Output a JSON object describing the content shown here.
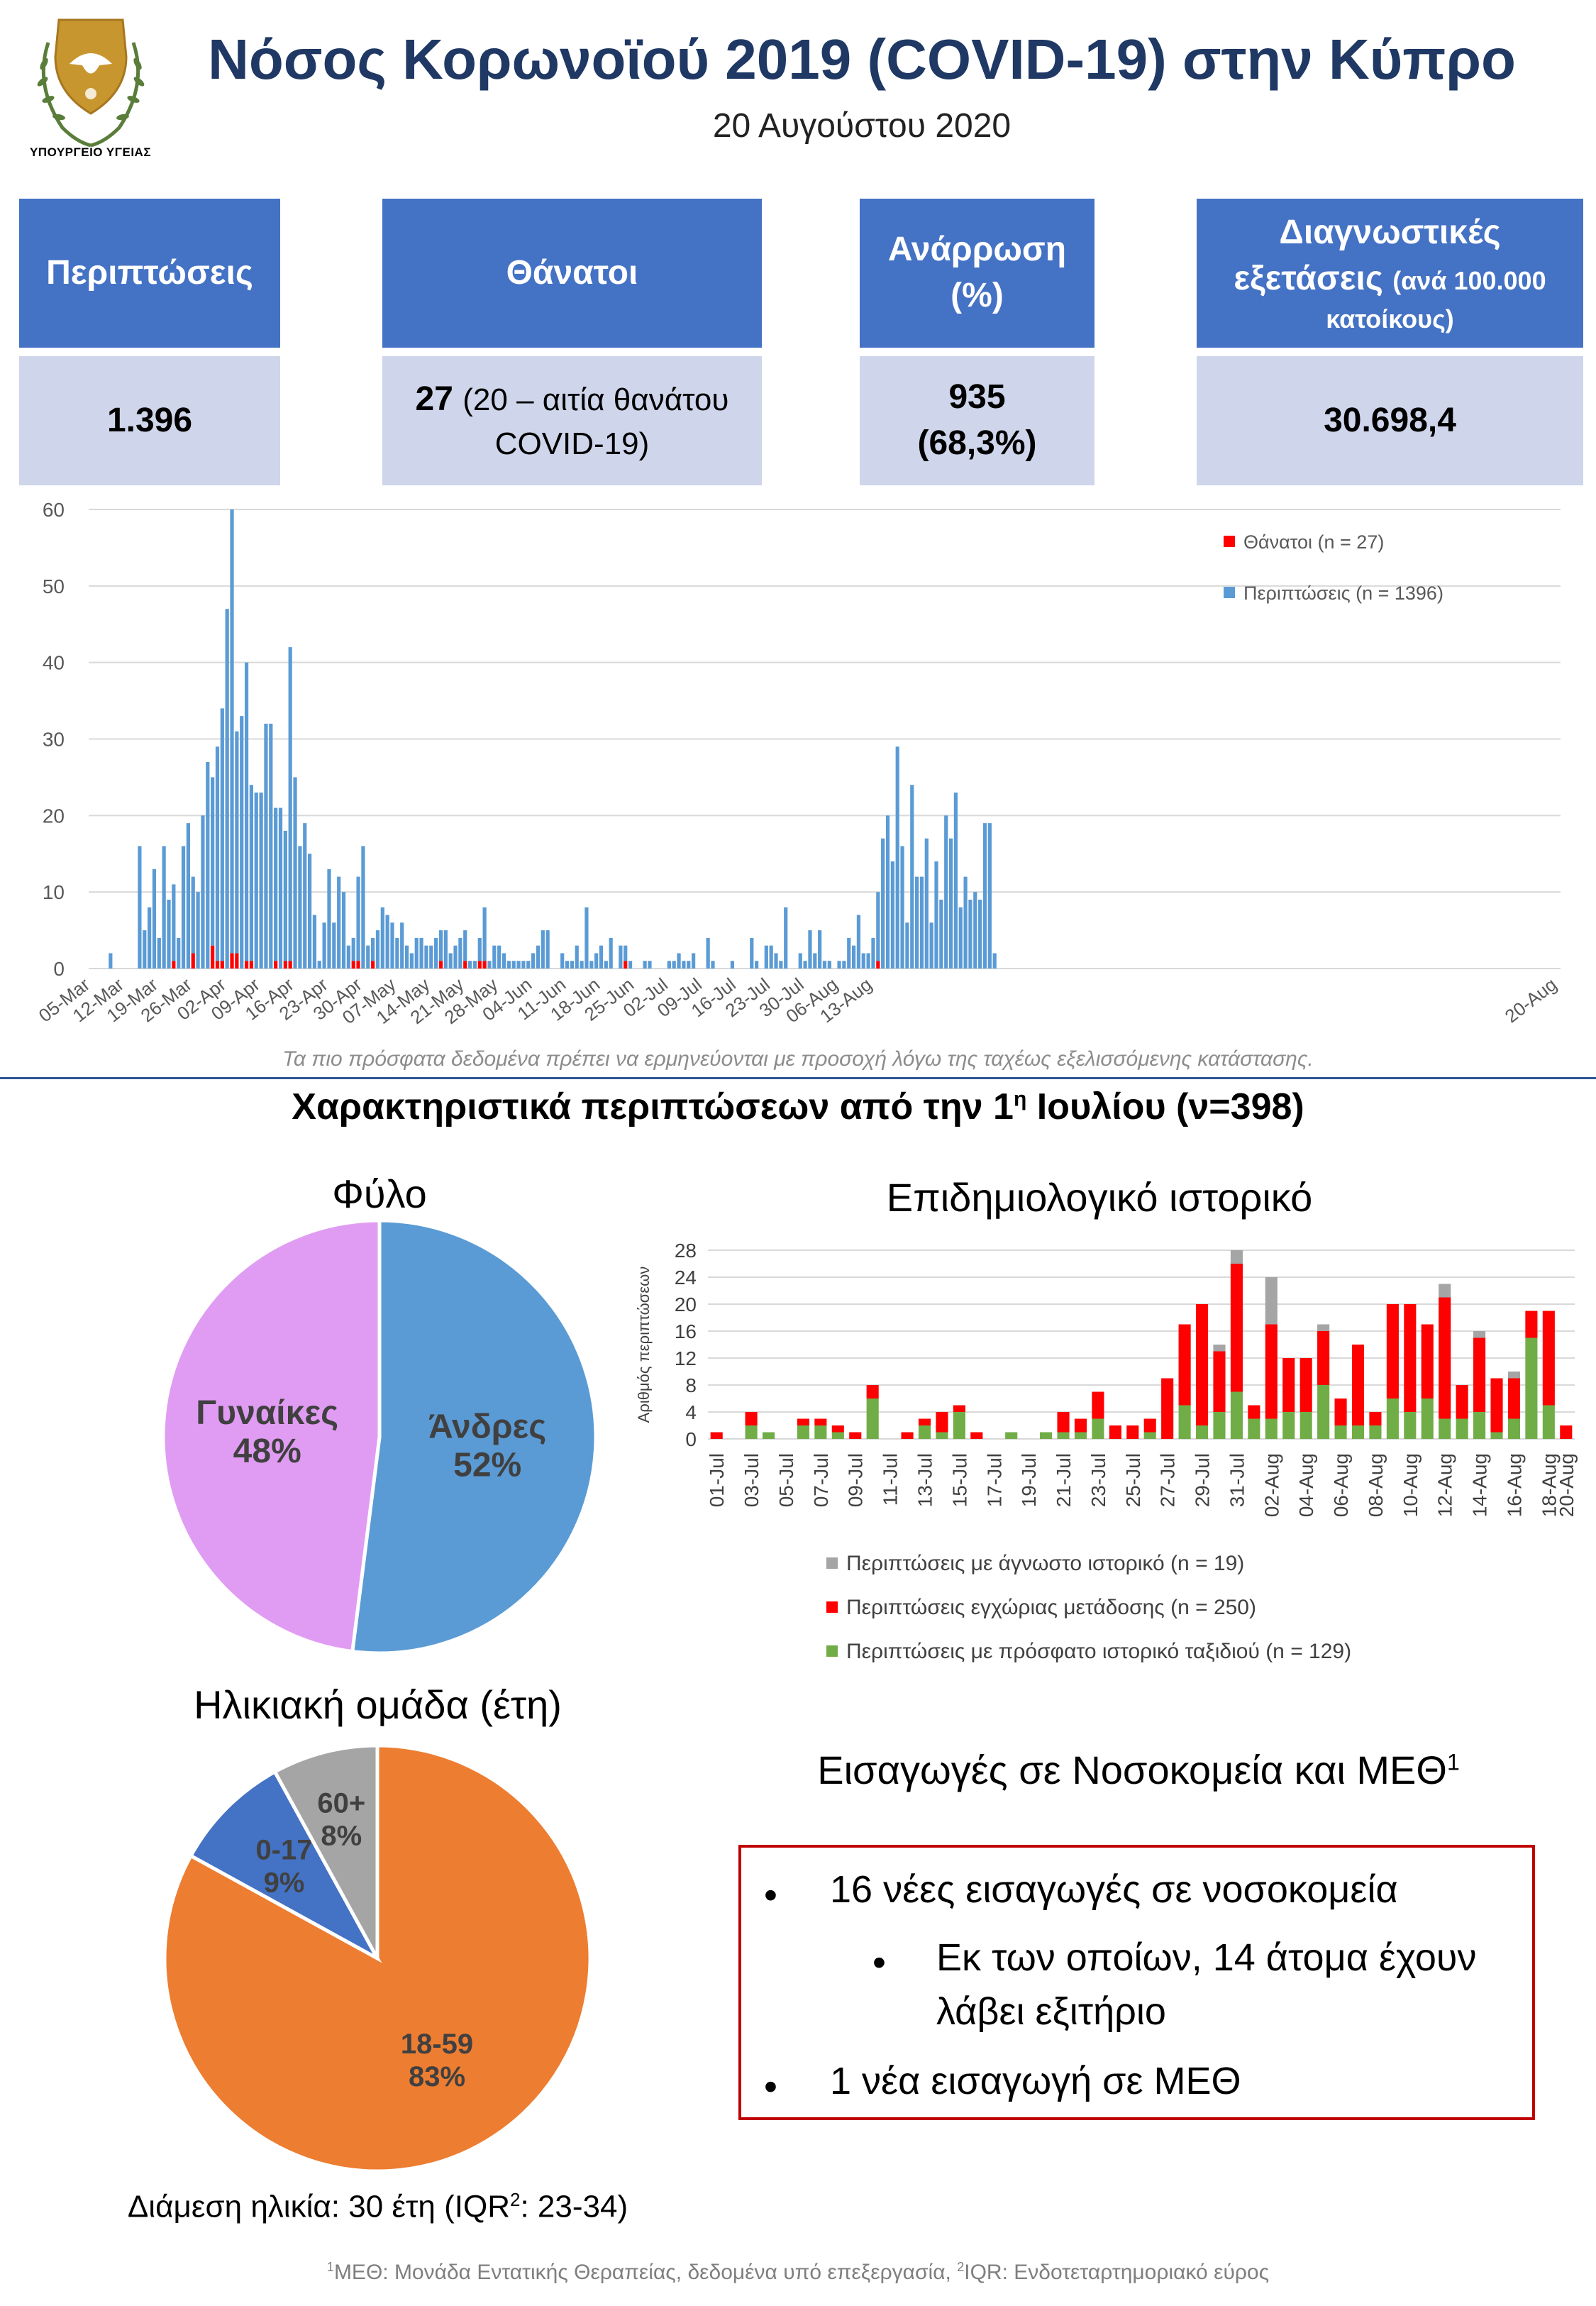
{
  "header": {
    "ministry": "ΥΠΟΥΡΓΕΙΟ ΥΓΕΙΑΣ",
    "title": "Νόσος Κορωνοϊού 2019 (COVID-19) στην Κύπρο",
    "date": "20 Αυγούστου 2020"
  },
  "kpis": {
    "cases_label": "Περιπτώσεις",
    "deaths_label": "Θάνατοι",
    "recovery_label": "Ανάρρωση",
    "recovery_unit": "(%)",
    "tests_label_a": "Διαγνωστικές",
    "tests_label_b": "εξετάσεις",
    "tests_label_c": "(ανά 100.000",
    "tests_label_d": "κατοίκους)",
    "cases_value": "1.396",
    "deaths_value": "27",
    "deaths_note_a": "(20 – αιτία θανάτου",
    "deaths_note_b": "COVID-19)",
    "recovery_value": "935",
    "recovery_pct": "(68,3%)",
    "tests_value": "30.698,4"
  },
  "chart_note": "Τα πιο πρόσφατα δεδομένα πρέπει να ερμηνεύονται με προσοχή λόγω της ταχέως εξελισσόμενης κατάστασης.",
  "section": {
    "title_a": "Χαρακτηριστικά περιπτώσεων από την 1",
    "title_sup": "η",
    "title_b": " Ιουλίου (ν=398)"
  },
  "sex_title": "Φύλο",
  "epi_title": "Επιδημιολογικό ιστορικό",
  "age_title": "Ηλικιακή ομάδα (έτη)",
  "hosp_title": "Εισαγωγές σε Νοσοκομεία και ΜΕΘ",
  "hosp_title_sup": "1",
  "callout": {
    "bullet": "•",
    "line1": "16 νέες εισαγωγές σε νοσοκομεία",
    "line2": "Εκ των οποίων, 14 άτομα έχουν λάβει εξιτήριο",
    "line3": "1 νέα εισαγωγή σε ΜΕΘ"
  },
  "median": {
    "text_a": "Διάμεση ηλικία: 30 έτη (IQR",
    "sup": "2",
    "text_b": ": 23-34)"
  },
  "footnote": {
    "sup1": "1",
    "part1": "ΜΕΘ: Μονάδα Εντατικής Θεραπείας, δεδομένα υπό επεξεργασία, ",
    "sup2": "2",
    "part2": "IQR: Ενδοτεταρτημοριακό εύρος"
  },
  "colors": {
    "brand": "#1f3864",
    "kpi_head": "#4472c4",
    "kpi_val": "#cfd5ea",
    "cases": "#5b9bd5",
    "deaths": "#ff0000",
    "travel": "#70ad47",
    "local": "#ff0000",
    "unknown": "#a5a5a5",
    "men": "#5b9bd5",
    "women": "#e09cf3",
    "age_18_59": "#ed7d31",
    "age_0_17": "#4472c4",
    "age_60": "#a5a5a5"
  },
  "chart_data": [
    {
      "type": "bar",
      "stacked": true,
      "title": "",
      "xlabel": "",
      "ylabel": "",
      "ylim": [
        0,
        60
      ],
      "yticks": [
        0,
        10,
        20,
        30,
        40,
        50,
        60
      ],
      "grid": true,
      "legend_position": "top-right",
      "x_start": "2020-03-05",
      "tick_labels": [
        "05-Mar",
        "12-Mar",
        "19-Mar",
        "26-Mar",
        "02-Apr",
        "09-Apr",
        "16-Apr",
        "23-Apr",
        "30-Apr",
        "07-May",
        "14-May",
        "21-May",
        "28-May",
        "04-Jun",
        "11-Jun",
        "18-Jun",
        "25-Jun",
        "02-Jul",
        "09-Jul",
        "16-Jul",
        "23-Jul",
        "30-Jul",
        "06-Aug",
        "13-Aug",
        "20-Aug"
      ],
      "series": [
        {
          "name": "Θάνατοι (n = 27)",
          "color": "#ff0000",
          "values": [
            0,
            0,
            0,
            0,
            0,
            0,
            0,
            0,
            0,
            0,
            0,
            0,
            0,
            0,
            0,
            0,
            0,
            1,
            0,
            0,
            0,
            2,
            0,
            0,
            0,
            3,
            1,
            1,
            0,
            2,
            2,
            0,
            1,
            1,
            0,
            0,
            0,
            0,
            1,
            0,
            1,
            1,
            0,
            0,
            0,
            0,
            0,
            0,
            0,
            0,
            0,
            0,
            0,
            0,
            1,
            1,
            0,
            0,
            1,
            0,
            0,
            0,
            0,
            0,
            0,
            0,
            0,
            0,
            0,
            0,
            0,
            0,
            1,
            0,
            0,
            0,
            0,
            1,
            0,
            0,
            1,
            1,
            0,
            0,
            0,
            0,
            0,
            0,
            0,
            0,
            0,
            0,
            0,
            0,
            0,
            0,
            0,
            0,
            0,
            0,
            0,
            0,
            0,
            0,
            0,
            0,
            0,
            0,
            0,
            0,
            1,
            0,
            0,
            0,
            0,
            0,
            0,
            0,
            0,
            0,
            0,
            0,
            0,
            0,
            0,
            0,
            0,
            0,
            0,
            0,
            0,
            0,
            0,
            0,
            0,
            0,
            0,
            0,
            0,
            0,
            0,
            0,
            0,
            0,
            0,
            0,
            0,
            0,
            0,
            0,
            0,
            0,
            0,
            0,
            0,
            0,
            0,
            0,
            0,
            0,
            0,
            0,
            1,
            0,
            0,
            0,
            0,
            0,
            0,
            0,
            0,
            0,
            0,
            0,
            0,
            0,
            0,
            0,
            0,
            0,
            0,
            0,
            0,
            0,
            0,
            0,
            0,
            0,
            0,
            0,
            0,
            0,
            0,
            0,
            0,
            0,
            0,
            0,
            0,
            0,
            0,
            0,
            0,
            0,
            0,
            0,
            0,
            0,
            0,
            0,
            0,
            0,
            0,
            0,
            0,
            0,
            0,
            0,
            0,
            0,
            0,
            0,
            0,
            0,
            0,
            0,
            0,
            0,
            0,
            0,
            0,
            0,
            0,
            0,
            0,
            0,
            0,
            0,
            0,
            0,
            0,
            0,
            0,
            0,
            0,
            0,
            0,
            0,
            0,
            0,
            0,
            0,
            0,
            0,
            0,
            0,
            0,
            0,
            0,
            0,
            0,
            0,
            0,
            0,
            0,
            0,
            0,
            0,
            0,
            0,
            0,
            0,
            0,
            0,
            0,
            0,
            0,
            0,
            0,
            0,
            0,
            0,
            0,
            0,
            0,
            0,
            0,
            0,
            0,
            0,
            0,
            0,
            0,
            0,
            0,
            0,
            0,
            0,
            0,
            0,
            0,
            0,
            0
          ]
        },
        {
          "name": "Περιπτώσεις (n = 1396)",
          "color": "#5b9bd5",
          "values": [
            0,
            0,
            0,
            0,
            2,
            0,
            0,
            0,
            0,
            0,
            16,
            5,
            8,
            13,
            4,
            16,
            9,
            10,
            4,
            16,
            19,
            10,
            10,
            20,
            27,
            22,
            28,
            33,
            47,
            58,
            29,
            33,
            39,
            23,
            23,
            23,
            32,
            32,
            20,
            21,
            17,
            41,
            25,
            16,
            19,
            15,
            7,
            1,
            6,
            13,
            6,
            12,
            10,
            3,
            3,
            11,
            16,
            3,
            3,
            5,
            8,
            7,
            6,
            4,
            6,
            3,
            2,
            4,
            4,
            3,
            3,
            4,
            4,
            5,
            2,
            3,
            4,
            4,
            1,
            1,
            3,
            7,
            1,
            3,
            3,
            2,
            1,
            1,
            1,
            1,
            1,
            2,
            3,
            5,
            5,
            0,
            0,
            2,
            1,
            1,
            3,
            1,
            8,
            1,
            2,
            3,
            1,
            4,
            0,
            3,
            2,
            1,
            0,
            0,
            1,
            1,
            0,
            0,
            0,
            1,
            1,
            2,
            1,
            1,
            2,
            0,
            0,
            4,
            1,
            0,
            0,
            0,
            1,
            0,
            0,
            0,
            4,
            1,
            0,
            3,
            3,
            2,
            1,
            8,
            0,
            0,
            2,
            1,
            5,
            2,
            5,
            1,
            1,
            0,
            1,
            1,
            4,
            3,
            7,
            2,
            2,
            4,
            9,
            17,
            20,
            14,
            29,
            16,
            6,
            24,
            12,
            12,
            17,
            6,
            14,
            9,
            20,
            17,
            23,
            8,
            12,
            9,
            10,
            9,
            19,
            19,
            2
          ]
        }
      ]
    },
    {
      "type": "pie",
      "title": "Φύλο",
      "labels": [
        "Άνδρες",
        "Γυναίκες"
      ],
      "values": [
        52,
        48
      ],
      "value_labels": [
        "52%",
        "48%"
      ],
      "colors": [
        "#5b9bd5",
        "#e09cf3"
      ]
    },
    {
      "type": "bar",
      "stacked": true,
      "title": "Επιδημιολογικό ιστορικό",
      "ylabel": "Αριθμός περιπτώσεων",
      "ylim": [
        0,
        28
      ],
      "yticks": [
        0,
        4,
        8,
        12,
        16,
        20,
        24,
        28
      ],
      "grid": true,
      "legend_position": "bottom",
      "x_start": "2020-07-01",
      "tick_labels": [
        "01-Jul",
        "03-Jul",
        "05-Jul",
        "07-Jul",
        "09-Jul",
        "11-Jul",
        "13-Jul",
        "15-Jul",
        "17-Jul",
        "19-Jul",
        "21-Jul",
        "23-Jul",
        "25-Jul",
        "27-Jul",
        "29-Jul",
        "31-Jul",
        "02-Aug",
        "04-Aug",
        "06-Aug",
        "08-Aug",
        "10-Aug",
        "12-Aug",
        "14-Aug",
        "16-Aug",
        "18-Aug",
        "20-Aug"
      ],
      "series": [
        {
          "name": "Περιπτώσεις με πρόσφατο ιστορικό ταξιδιού (n = 129)",
          "color": "#70ad47",
          "values": [
            0,
            0,
            2,
            1,
            0,
            2,
            2,
            1,
            0,
            6,
            0,
            0,
            2,
            1,
            4,
            0,
            0,
            1,
            0,
            1,
            1,
            1,
            3,
            0,
            0,
            1,
            0,
            5,
            2,
            4,
            7,
            3,
            3,
            4,
            4,
            8,
            2,
            2,
            2,
            6,
            4,
            6,
            3,
            3,
            4,
            1,
            3,
            15,
            5,
            0
          ]
        },
        {
          "name": "Περιπτώσεις εγχώριας μετάδοσης (n = 250)",
          "color": "#ff0000",
          "values": [
            1,
            0,
            2,
            0,
            0,
            1,
            1,
            1,
            1,
            2,
            0,
            1,
            1,
            3,
            1,
            1,
            0,
            0,
            0,
            0,
            3,
            2,
            4,
            2,
            2,
            2,
            9,
            12,
            18,
            9,
            19,
            2,
            14,
            8,
            8,
            8,
            4,
            12,
            2,
            14,
            16,
            11,
            18,
            5,
            11,
            8,
            6,
            4,
            14,
            2
          ]
        },
        {
          "name": "Περιπτώσεις με άγνωστο ιστορικό (n = 19)",
          "color": "#a5a5a5",
          "values": [
            0,
            0,
            0,
            0,
            0,
            0,
            0,
            0,
            0,
            0,
            0,
            0,
            0,
            0,
            0,
            0,
            0,
            0,
            0,
            0,
            0,
            0,
            0,
            0,
            0,
            0,
            0,
            0,
            0,
            1,
            2,
            0,
            7,
            0,
            0,
            1,
            0,
            0,
            0,
            0,
            0,
            0,
            2,
            0,
            1,
            0,
            1,
            0,
            0,
            0
          ]
        }
      ]
    },
    {
      "type": "pie",
      "title": "Ηλικιακή ομάδα (έτη)",
      "labels": [
        "18-59",
        "0-17",
        "60+"
      ],
      "values": [
        83,
        9,
        8
      ],
      "value_labels": [
        "83%",
        "9%",
        "8%"
      ],
      "colors": [
        "#ed7d31",
        "#4472c4",
        "#a5a5a5"
      ]
    }
  ]
}
